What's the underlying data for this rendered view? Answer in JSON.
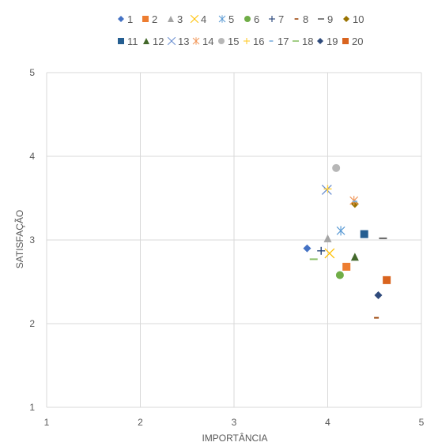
{
  "chart_data": {
    "type": "scatter",
    "title": "",
    "xlabel": "IMPORTÂNCIA",
    "ylabel": "SATISFAÇÃO",
    "xlim": [
      1,
      5
    ],
    "ylim": [
      1,
      5
    ],
    "xticks": [
      "1",
      "2",
      "3",
      "4",
      "5"
    ],
    "yticks": [
      "1",
      "2",
      "3",
      "4",
      "5"
    ],
    "grid": true,
    "legend_position": "top",
    "series": [
      {
        "name": "1",
        "marker": "diamond",
        "color": "#4472C4",
        "x": 3.78,
        "y": 2.9
      },
      {
        "name": "2",
        "marker": "square",
        "color": "#ED7D31",
        "x": 4.2,
        "y": 2.68
      },
      {
        "name": "3",
        "marker": "triangle",
        "color": "#A5A5A5",
        "x": 4.0,
        "y": 3.02
      },
      {
        "name": "4",
        "marker": "x",
        "color": "#FFC000",
        "x": 4.02,
        "y": 2.84
      },
      {
        "name": "5",
        "marker": "star",
        "color": "#5B9BD5",
        "x": 4.14,
        "y": 3.11
      },
      {
        "name": "6",
        "marker": "circle",
        "color": "#70AD47",
        "x": 4.13,
        "y": 2.58
      },
      {
        "name": "7",
        "marker": "plus",
        "color": "#264478",
        "x": 3.93,
        "y": 2.87
      },
      {
        "name": "8",
        "marker": "shortdash",
        "color": "#9E480E",
        "x": 4.52,
        "y": 2.07
      },
      {
        "name": "9",
        "marker": "dash",
        "color": "#636363",
        "x": 4.59,
        "y": 3.02
      },
      {
        "name": "10",
        "marker": "diamond",
        "color": "#997300",
        "x": 4.29,
        "y": 3.43
      },
      {
        "name": "11",
        "marker": "square",
        "color": "#255E91",
        "x": 4.39,
        "y": 3.07
      },
      {
        "name": "12",
        "marker": "triangle",
        "color": "#43682B",
        "x": 4.29,
        "y": 2.8
      },
      {
        "name": "13",
        "marker": "x",
        "color": "#698ED0",
        "x": 3.99,
        "y": 3.6
      },
      {
        "name": "14",
        "marker": "star",
        "color": "#F1975A",
        "x": 4.28,
        "y": 3.47
      },
      {
        "name": "15",
        "marker": "circle",
        "color": "#B7B7B7",
        "x": 4.09,
        "y": 3.86
      },
      {
        "name": "16",
        "marker": "plus",
        "color": "#FFCD33",
        "x": 4.0,
        "y": 3.61
      },
      {
        "name": "17",
        "marker": "shortdash",
        "color": "#7CAFDD",
        "x": 4.29,
        "y": 3.46
      },
      {
        "name": "18",
        "marker": "dash",
        "color": "#8CC168",
        "x": 3.85,
        "y": 2.77
      },
      {
        "name": "19",
        "marker": "diamond",
        "color": "#2F4B7C",
        "x": 4.54,
        "y": 2.34
      },
      {
        "name": "20",
        "marker": "square",
        "color": "#D9641F",
        "x": 4.63,
        "y": 2.52
      }
    ]
  }
}
